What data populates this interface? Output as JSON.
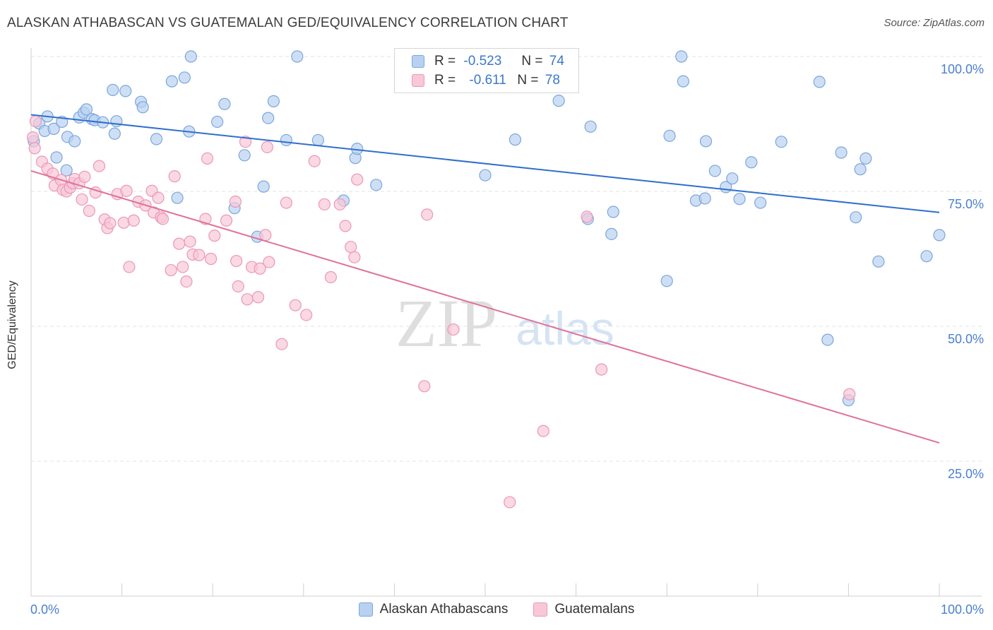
{
  "title": "ALASKAN ATHABASCAN VS GUATEMALAN GED/EQUIVALENCY CORRELATION CHART",
  "source": "Source: ZipAtlas.com",
  "watermark": {
    "zip": "ZIP",
    "atlas": "atlas"
  },
  "stats": {
    "r_label": "R =",
    "n_label": "N =",
    "rows": [
      {
        "r": "-0.523",
        "n": "74"
      },
      {
        "r": "-0.611",
        "n": "78"
      }
    ]
  },
  "colors": {
    "blue_fill": "#b9d1f1",
    "blue_stroke": "#7aa6dc",
    "blue_line": "#2f6fcc",
    "pink_fill": "#f8c8d8",
    "pink_stroke": "#ec97b4",
    "pink_line": "#e0719b",
    "tick_label": "#4a7fd0"
  },
  "chart_data": {
    "type": "scatter",
    "title": "ALASKAN ATHABASCAN VS GUATEMALAN GED/EQUIVALENCY CORRELATION CHART",
    "xlabel": "",
    "ylabel": "GED/Equivalency",
    "xlim": [
      0,
      100
    ],
    "ylim": [
      0,
      100
    ],
    "x_tick_labels": [
      "0.0%",
      "100.0%"
    ],
    "y_ticks": [
      25,
      50,
      75,
      100
    ],
    "y_tick_labels": [
      "25.0%",
      "50.0%",
      "75.0%",
      "100.0%"
    ],
    "grid": true,
    "legend_position": "bottom-center",
    "series": [
      {
        "name": "Alaskan Athabascans",
        "r": -0.523,
        "n": 74,
        "trend": {
          "x": [
            0,
            100
          ],
          "y": [
            89.2,
            71.1
          ]
        },
        "points": [
          [
            0.3,
            84.3
          ],
          [
            0.9,
            87.6
          ],
          [
            1.5,
            86.2
          ],
          [
            1.8,
            88.9
          ],
          [
            2.5,
            86.6
          ],
          [
            3.4,
            87.9
          ],
          [
            2.8,
            81.3
          ],
          [
            4.0,
            85.1
          ],
          [
            3.9,
            78.9
          ],
          [
            4.8,
            84.3
          ],
          [
            5.3,
            88.7
          ],
          [
            5.8,
            89.6
          ],
          [
            6.1,
            90.2
          ],
          [
            6.7,
            88.4
          ],
          [
            7.0,
            88.2
          ],
          [
            7.9,
            87.8
          ],
          [
            9.0,
            93.8
          ],
          [
            9.2,
            85.7
          ],
          [
            9.4,
            88.0
          ],
          [
            10.4,
            93.6
          ],
          [
            12.1,
            91.6
          ],
          [
            12.3,
            90.6
          ],
          [
            13.8,
            84.7
          ],
          [
            15.5,
            95.4
          ],
          [
            16.1,
            73.8
          ],
          [
            16.9,
            96.1
          ],
          [
            17.4,
            86.1
          ],
          [
            17.6,
            100.0
          ],
          [
            20.5,
            87.9
          ],
          [
            21.3,
            91.2
          ],
          [
            22.4,
            71.9
          ],
          [
            23.5,
            81.7
          ],
          [
            24.9,
            66.6
          ],
          [
            25.6,
            75.9
          ],
          [
            26.1,
            88.6
          ],
          [
            26.7,
            91.7
          ],
          [
            28.1,
            84.5
          ],
          [
            29.3,
            100.0
          ],
          [
            31.6,
            84.5
          ],
          [
            34.4,
            73.3
          ],
          [
            35.7,
            81.2
          ],
          [
            35.9,
            82.9
          ],
          [
            38.0,
            76.2
          ],
          [
            50.0,
            78.0
          ],
          [
            53.3,
            84.6
          ],
          [
            58.1,
            91.8
          ],
          [
            61.3,
            69.9
          ],
          [
            61.6,
            87.0
          ],
          [
            63.9,
            67.1
          ],
          [
            64.1,
            71.2
          ],
          [
            70.0,
            58.4
          ],
          [
            70.3,
            85.3
          ],
          [
            71.6,
            100.0
          ],
          [
            71.8,
            95.4
          ],
          [
            73.2,
            73.3
          ],
          [
            74.2,
            73.7
          ],
          [
            74.3,
            84.3
          ],
          [
            75.3,
            78.8
          ],
          [
            76.5,
            75.8
          ],
          [
            77.2,
            77.4
          ],
          [
            78.0,
            73.6
          ],
          [
            79.3,
            80.4
          ],
          [
            80.3,
            72.9
          ],
          [
            82.6,
            84.2
          ],
          [
            86.8,
            95.3
          ],
          [
            87.7,
            47.5
          ],
          [
            89.2,
            82.2
          ],
          [
            90.0,
            36.3
          ],
          [
            90.8,
            70.2
          ],
          [
            91.3,
            79.1
          ],
          [
            91.9,
            81.1
          ],
          [
            93.3,
            62.0
          ],
          [
            98.6,
            63.0
          ],
          [
            100.0,
            66.9
          ]
        ]
      },
      {
        "name": "Guatemalans",
        "r": -0.611,
        "n": 78,
        "trend": {
          "x": [
            0,
            100
          ],
          "y": [
            78.8,
            28.4
          ]
        },
        "points": [
          [
            0.2,
            85.0
          ],
          [
            0.4,
            83.0
          ],
          [
            0.5,
            88.0
          ],
          [
            1.2,
            80.5
          ],
          [
            1.8,
            79.2
          ],
          [
            2.4,
            78.3
          ],
          [
            2.6,
            76.1
          ],
          [
            3.3,
            77.1
          ],
          [
            3.5,
            75.3
          ],
          [
            3.9,
            75.0
          ],
          [
            4.3,
            75.7
          ],
          [
            4.6,
            76.5
          ],
          [
            4.8,
            77.3
          ],
          [
            5.3,
            76.5
          ],
          [
            5.9,
            77.7
          ],
          [
            5.6,
            73.5
          ],
          [
            6.4,
            71.4
          ],
          [
            7.1,
            74.8
          ],
          [
            7.5,
            79.7
          ],
          [
            8.1,
            69.8
          ],
          [
            8.4,
            68.2
          ],
          [
            8.7,
            69.1
          ],
          [
            9.5,
            74.5
          ],
          [
            10.2,
            69.2
          ],
          [
            10.5,
            75.1
          ],
          [
            10.8,
            61.0
          ],
          [
            11.3,
            69.6
          ],
          [
            11.8,
            73.1
          ],
          [
            12.6,
            72.4
          ],
          [
            13.3,
            75.1
          ],
          [
            13.5,
            71.1
          ],
          [
            14.0,
            73.8
          ],
          [
            14.3,
            70.2
          ],
          [
            14.5,
            69.9
          ],
          [
            15.4,
            60.4
          ],
          [
            15.8,
            77.8
          ],
          [
            16.3,
            65.3
          ],
          [
            16.7,
            61.0
          ],
          [
            17.1,
            58.3
          ],
          [
            17.5,
            65.7
          ],
          [
            17.8,
            63.3
          ],
          [
            18.5,
            63.2
          ],
          [
            19.2,
            69.9
          ],
          [
            19.4,
            81.1
          ],
          [
            19.8,
            62.5
          ],
          [
            20.2,
            66.8
          ],
          [
            21.5,
            69.6
          ],
          [
            22.5,
            73.1
          ],
          [
            22.6,
            62.1
          ],
          [
            22.8,
            57.4
          ],
          [
            23.6,
            84.2
          ],
          [
            23.8,
            55.0
          ],
          [
            24.3,
            61.0
          ],
          [
            25.0,
            55.4
          ],
          [
            25.2,
            60.7
          ],
          [
            25.8,
            66.9
          ],
          [
            26.0,
            83.2
          ],
          [
            26.2,
            61.9
          ],
          [
            27.6,
            46.7
          ],
          [
            28.1,
            72.9
          ],
          [
            29.1,
            53.9
          ],
          [
            30.3,
            52.1
          ],
          [
            31.2,
            80.6
          ],
          [
            32.3,
            72.6
          ],
          [
            33.0,
            59.1
          ],
          [
            34.0,
            72.6
          ],
          [
            34.6,
            68.6
          ],
          [
            35.2,
            64.7
          ],
          [
            35.6,
            62.8
          ],
          [
            35.9,
            77.2
          ],
          [
            43.3,
            38.9
          ],
          [
            43.6,
            70.7
          ],
          [
            46.5,
            49.4
          ],
          [
            52.7,
            17.4
          ],
          [
            56.4,
            30.6
          ],
          [
            61.2,
            70.3
          ],
          [
            62.8,
            42.0
          ],
          [
            90.1,
            37.4
          ]
        ]
      }
    ]
  }
}
